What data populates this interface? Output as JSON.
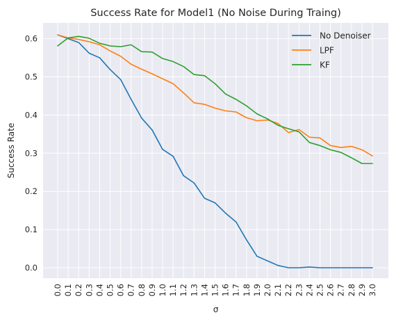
{
  "chart_data": {
    "type": "line",
    "title": "Success Rate for Model1 (No Noise During Traing)",
    "xlabel": "σ",
    "ylabel": "Success Rate",
    "x": [
      "0.0",
      "0.1",
      "0.2",
      "0.3",
      "0.4",
      "0.5",
      "0.6",
      "0.7",
      "0.8",
      "0.9",
      "1.0",
      "1.1",
      "1.2",
      "1.3",
      "1.4",
      "1.5",
      "1.6",
      "1.7",
      "1.8",
      "1.9",
      "2.0",
      "2.1",
      "2.2",
      "2.3",
      "2.4",
      "2.5",
      "2.6",
      "2.7",
      "2.8",
      "2.9",
      "3.0"
    ],
    "ylim": [
      -0.03,
      0.64
    ],
    "yticks": [
      "0.0",
      "0.1",
      "0.2",
      "0.3",
      "0.4",
      "0.5",
      "0.6"
    ],
    "grid": true,
    "legend_position": "top-right",
    "series": [
      {
        "name": "No Denoiser",
        "color": "#1f77b4",
        "values": [
          0.61,
          0.6,
          0.59,
          0.562,
          0.55,
          0.519,
          0.493,
          0.441,
          0.392,
          0.361,
          0.31,
          0.292,
          0.241,
          0.222,
          0.182,
          0.17,
          0.143,
          0.12,
          0.073,
          0.03,
          0.018,
          0.006,
          0.0,
          0.0,
          0.002,
          0.0,
          0.0,
          0.0,
          0.0,
          0.0,
          0.0
        ]
      },
      {
        "name": "LPF",
        "color": "#ff7f0e",
        "values": [
          0.61,
          0.602,
          0.598,
          0.592,
          0.584,
          0.568,
          0.554,
          0.533,
          0.52,
          0.508,
          0.495,
          0.482,
          0.458,
          0.432,
          0.428,
          0.418,
          0.411,
          0.408,
          0.393,
          0.385,
          0.387,
          0.378,
          0.354,
          0.362,
          0.342,
          0.34,
          0.32,
          0.315,
          0.318,
          0.309,
          0.293
        ]
      },
      {
        "name": "KF",
        "color": "#2ca02c",
        "values": [
          0.581,
          0.602,
          0.606,
          0.601,
          0.588,
          0.581,
          0.579,
          0.584,
          0.566,
          0.565,
          0.548,
          0.54,
          0.527,
          0.506,
          0.503,
          0.482,
          0.455,
          0.441,
          0.424,
          0.403,
          0.39,
          0.373,
          0.364,
          0.356,
          0.328,
          0.32,
          0.309,
          0.302,
          0.288,
          0.273,
          0.273
        ]
      }
    ]
  }
}
